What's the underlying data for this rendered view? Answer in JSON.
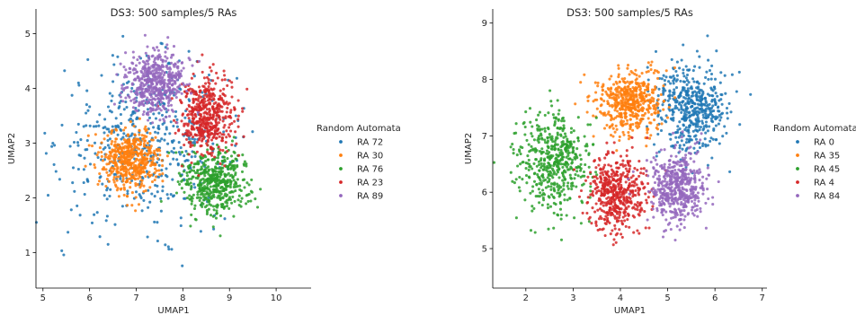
{
  "chart_data": [
    {
      "type": "scatter",
      "title": "DS3: 500 samples/5 RAs",
      "xlabel": "UMAP1",
      "ylabel": "UMAP2",
      "xlim": [
        4.85,
        10.75
      ],
      "ylim": [
        0.35,
        5.45
      ],
      "xticks": [
        5,
        6,
        7,
        8,
        9,
        10
      ],
      "yticks": [
        1,
        2,
        3,
        4,
        5
      ],
      "grid": false,
      "legend_title": "Random Automata",
      "legend_position": "right",
      "point_size": "small",
      "series": [
        {
          "name": "RA 72",
          "color": "#1f77b4",
          "count": 500,
          "center": [
            7.2,
            3.0
          ],
          "spread": [
            1.45,
            1.15
          ]
        },
        {
          "name": "RA 30",
          "color": "#ff7f0e",
          "count": 500,
          "center": [
            6.9,
            2.7
          ],
          "spread": [
            0.5,
            0.45
          ]
        },
        {
          "name": "RA 76",
          "color": "#2ca02c",
          "count": 500,
          "center": [
            8.7,
            2.3
          ],
          "spread": [
            0.6,
            0.5
          ]
        },
        {
          "name": "RA 23",
          "color": "#d62728",
          "count": 500,
          "center": [
            8.5,
            3.5
          ],
          "spread": [
            0.45,
            0.55
          ]
        },
        {
          "name": "RA 89",
          "color": "#9467bd",
          "count": 500,
          "center": [
            7.4,
            4.1
          ],
          "spread": [
            0.5,
            0.45
          ]
        }
      ]
    },
    {
      "type": "scatter",
      "title": "DS3: 500 samples/5 RAs",
      "xlabel": "UMAP1",
      "ylabel": "UMAP2",
      "xlim": [
        1.3,
        7.1
      ],
      "ylim": [
        4.3,
        9.25
      ],
      "xticks": [
        2,
        3,
        4,
        5,
        6,
        7
      ],
      "yticks": [
        5,
        6,
        7,
        8,
        9
      ],
      "grid": false,
      "legend_title": "Random Automata",
      "legend_position": "right",
      "point_size": "small",
      "series": [
        {
          "name": "RA 0",
          "color": "#1f77b4",
          "count": 500,
          "center": [
            5.5,
            7.5
          ],
          "spread": [
            0.6,
            0.65
          ]
        },
        {
          "name": "RA 35",
          "color": "#ff7f0e",
          "count": 500,
          "center": [
            4.2,
            7.6
          ],
          "spread": [
            0.55,
            0.45
          ]
        },
        {
          "name": "RA 45",
          "color": "#2ca02c",
          "count": 500,
          "center": [
            2.6,
            6.5
          ],
          "spread": [
            0.6,
            0.7
          ]
        },
        {
          "name": "RA 4",
          "color": "#d62728",
          "count": 500,
          "center": [
            3.9,
            6.0
          ],
          "spread": [
            0.5,
            0.55
          ]
        },
        {
          "name": "RA 84",
          "color": "#9467bd",
          "count": 500,
          "center": [
            5.2,
            6.1
          ],
          "spread": [
            0.45,
            0.5
          ]
        }
      ]
    }
  ]
}
